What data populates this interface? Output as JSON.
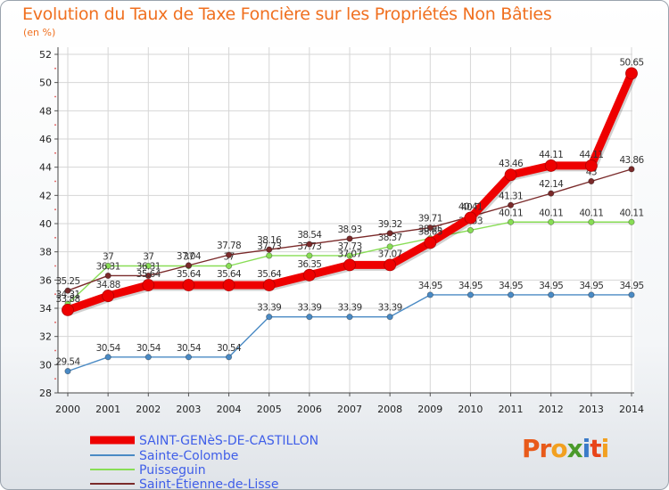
{
  "title": "Evolution du Taux de Taxe Foncière sur les Propriétés Non Bâties",
  "subtitle": "(en %)",
  "logo_text": "Proxiti",
  "chart_data": {
    "type": "line",
    "title": "Evolution du Taux de Taxe Foncière sur les Propriétés Non Bâties",
    "ylabel": "(en %)",
    "xlabel": "",
    "ylim": [
      28,
      52
    ],
    "yticks": [
      28,
      30,
      32,
      34,
      36,
      38,
      40,
      42,
      44,
      46,
      48,
      50,
      52
    ],
    "x": [
      "2000",
      "2001",
      "2002",
      "2003",
      "2004",
      "2005",
      "2006",
      "2007",
      "2008",
      "2009",
      "2010",
      "2011",
      "2012",
      "2013",
      "2014"
    ],
    "series": [
      {
        "name": "SAINT-GENèS-DE-CASTILLON",
        "color": "#ee0000",
        "values": [
          33.88,
          34.88,
          35.64,
          35.64,
          35.64,
          35.64,
          36.35,
          37.07,
          37.07,
          38.65,
          40.41,
          43.46,
          44.11,
          44.11,
          50.65
        ],
        "labels": [
          "33.88",
          "34.88",
          "35.64",
          "35.64",
          "35.64",
          "35.64",
          "36.35",
          "37.07",
          "37.07",
          "38.65",
          "40.41",
          "43.46",
          "44.11",
          "44.11",
          "50.65"
        ]
      },
      {
        "name": "Sainte-Colombe",
        "color": "#4a8ac4",
        "values": [
          29.54,
          30.54,
          30.54,
          30.54,
          30.54,
          33.39,
          33.39,
          33.39,
          33.39,
          34.95,
          34.95,
          34.95,
          34.95,
          34.95,
          34.95
        ],
        "labels": [
          "29.54",
          "30.54",
          "30.54",
          "30.54",
          "30.54",
          "33.39",
          "33.39",
          "33.39",
          "33.39",
          "34.95",
          "34.95",
          "34.95",
          "34.95",
          "34.95",
          "34.95"
        ]
      },
      {
        "name": "Puisseguin",
        "color": "#88dd55",
        "values": [
          34.31,
          37,
          37,
          37,
          37,
          37.73,
          37.73,
          37.73,
          38.37,
          38.95,
          39.53,
          40.11,
          40.11,
          40.11,
          40.11
        ],
        "labels": [
          "34.31",
          "37",
          "37",
          "37",
          "37",
          "37.73",
          "37.73",
          "37.73",
          "38.37",
          "38.95",
          "39.53",
          "40.11",
          "40.11",
          "40.11",
          "40.11"
        ]
      },
      {
        "name": "Saint-Étienne-de-Lisse",
        "color": "#7a2a2a",
        "values": [
          35.25,
          36.31,
          36.31,
          37.04,
          37.78,
          38.16,
          38.54,
          38.93,
          39.32,
          39.71,
          40.5,
          41.31,
          42.14,
          43,
          43.86
        ],
        "labels": [
          "35.25",
          "36.31",
          "36.31",
          "37.04",
          "37.78",
          "38.16",
          "38.54",
          "38.93",
          "39.32",
          "39.71",
          "40.5",
          "41.31",
          "42.14",
          "43",
          "43.86"
        ]
      }
    ]
  }
}
